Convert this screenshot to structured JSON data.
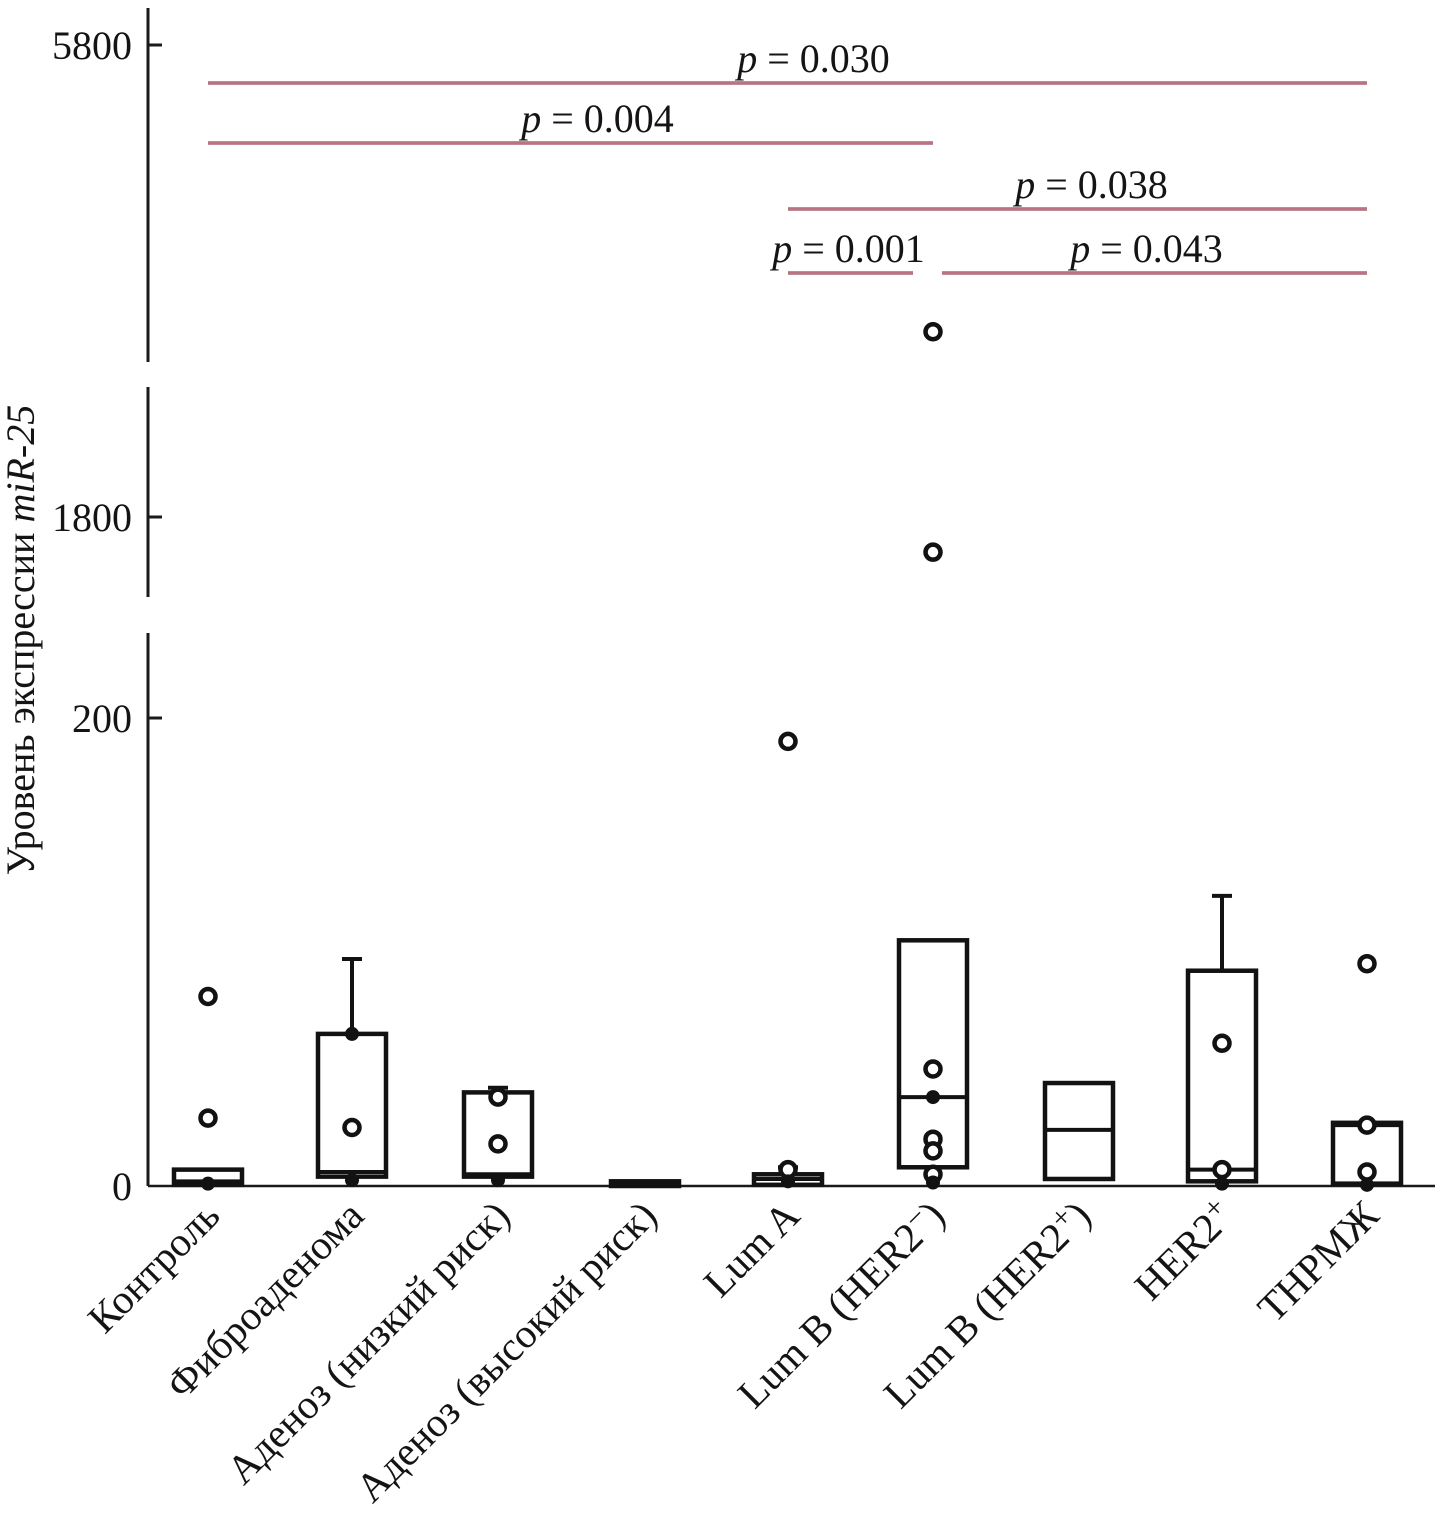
{
  "chart_data": {
    "type": "boxplot",
    "title": "",
    "ylabel_prefix": "Уровень экспрессии ",
    "ylabel_italic": "miR-25",
    "y_ticks": [
      0,
      200,
      1800,
      5800
    ],
    "y_tick_labels": [
      "0",
      "200",
      "1800",
      "5800"
    ],
    "y_axis_has_scale_breaks": true,
    "y_axis_break_count": 2,
    "categories": [
      "Контроль",
      "Фиброаденома",
      "Аденоз (низкий риск)",
      "Аденоз (высокий риск)",
      "Lum A",
      "Lum B (HER2−)",
      "Lum B (HER2+)",
      "HER2+",
      "ТНРМЖ"
    ],
    "boxes": [
      {
        "category": "Контроль",
        "q1": 0.5,
        "median": 2,
        "q3": 7,
        "whisker_low": null,
        "whisker_high": null,
        "points_open": [
          81,
          29
        ],
        "points_filled": [
          1
        ]
      },
      {
        "category": "Фиброаденома",
        "q1": 4,
        "median": 6,
        "q3": 65,
        "whisker_low": null,
        "whisker_high": 97,
        "points_open": [
          25
        ],
        "points_filled": [
          65,
          2.5
        ]
      },
      {
        "category": "Аденоз (низкий риск)",
        "q1": 4,
        "median": 5,
        "q3": 40,
        "whisker_low": null,
        "whisker_high": 42,
        "points_open": [
          38,
          18
        ],
        "points_filled": [
          2.5
        ]
      },
      {
        "category": "Аденоз (высокий риск)",
        "q1": 0,
        "median": 1,
        "q3": 2,
        "whisker_low": null,
        "whisker_high": null,
        "points_open": [],
        "points_filled": []
      },
      {
        "category": "Lum A",
        "q1": 0.5,
        "median": 3,
        "q3": 5,
        "whisker_low": null,
        "whisker_high": 8,
        "points_open": [
          190,
          7
        ],
        "points_filled": [
          2
        ]
      },
      {
        "category": "Lum B (HER2−)",
        "q1": 8,
        "median": 38,
        "q3": 105,
        "whisker_low": null,
        "whisker_high": null,
        "points_open": [
          3370,
          1520,
          50,
          20,
          15,
          5
        ],
        "points_filled": [
          38,
          1.5
        ]
      },
      {
        "category": "Lum B (HER2+)",
        "q1": 3,
        "median": 24,
        "q3": 44,
        "whisker_low": null,
        "whisker_high": null,
        "points_open": [],
        "points_filled": []
      },
      {
        "category": "HER2+",
        "q1": 2,
        "median": 7,
        "q3": 92,
        "whisker_low": null,
        "whisker_high": 124,
        "points_open": [
          61,
          7
        ],
        "points_filled": [
          1
        ]
      },
      {
        "category": "ТНРМЖ",
        "q1": 1,
        "median": 26,
        "q3": 27,
        "whisker_low": null,
        "whisker_high": null,
        "points_open": [
          95,
          26,
          6
        ],
        "points_filled": [
          0.5
        ]
      }
    ],
    "significance": [
      {
        "label": "p = 0.030",
        "from": "Контроль",
        "to": "ТНРМЖ"
      },
      {
        "label": "p = 0.004",
        "from": "Контроль",
        "to": "Lum B (HER2−)"
      },
      {
        "label": "p = 0.038",
        "from": "Lum A",
        "to": "ТНРМЖ"
      },
      {
        "label": "p = 0.001",
        "from": "Lum A",
        "to": "Lum B (HER2−)"
      },
      {
        "label": "p = 0.043",
        "from": "Lum B (HER2−)",
        "to": "ТНРМЖ"
      }
    ]
  },
  "colors": {
    "axis": "#1a1a1a",
    "text": "#141414",
    "box_stroke": "#121212",
    "box_fill": "#ffffff",
    "significance_line": "#9e4457",
    "significance_line_inner": "#d4a5b1",
    "background": "#ffffff"
  }
}
